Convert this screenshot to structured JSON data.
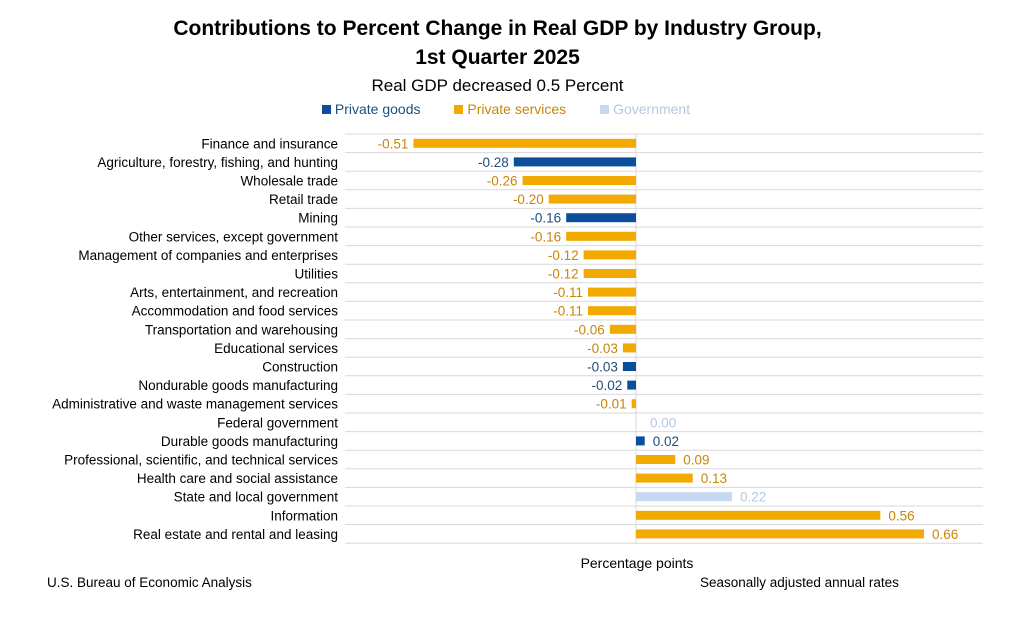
{
  "title_line1": "Contributions to Percent Change in Real GDP by Industry Group,",
  "title_line2": "1st Quarter 2025",
  "subtitle": "Real GDP decreased 0.5 Percent",
  "legend": [
    {
      "label": "Private goods",
      "color": "#0b4f9c"
    },
    {
      "label": "Private services",
      "color": "#f2a900"
    },
    {
      "label": "Government",
      "color": "#c5d9f1"
    }
  ],
  "axis_title": "Percentage points",
  "source": "U.S. Bureau of Economic Analysis",
  "note": "Seasonally adjusted annual rates",
  "colors": {
    "goods": "#0b4f9c",
    "services": "#f2a900",
    "government": "#c5d9f1",
    "grid": "#d9d9d9",
    "label_goods": "#1f4e79",
    "label_services": "#c8850a",
    "label_government": "#b4c8e4"
  },
  "chart_data": {
    "type": "bar",
    "orientation": "horizontal",
    "xlim": [
      -0.74,
      0.74
    ],
    "grid": true,
    "legend_position": "top",
    "categories": [
      "Finance and insurance",
      "Agriculture, forestry, fishing, and hunting",
      "Wholesale trade",
      "Retail trade",
      "Mining",
      "Other services, except government",
      "Management of companies and enterprises",
      "Utilities",
      "Arts, entertainment, and recreation",
      "Accommodation and food services",
      "Transportation and warehousing",
      "Educational services",
      "Construction",
      "Nondurable goods manufacturing",
      "Administrative and waste management services",
      "Federal government",
      "Durable goods manufacturing",
      "Professional, scientific, and technical services",
      "Health care and social assistance",
      "State and local government",
      "Information",
      "Real estate and rental and leasing"
    ],
    "values": [
      -0.51,
      -0.28,
      -0.26,
      -0.2,
      -0.16,
      -0.16,
      -0.12,
      -0.12,
      -0.11,
      -0.11,
      -0.06,
      -0.03,
      -0.03,
      -0.02,
      -0.01,
      0.0,
      0.02,
      0.09,
      0.13,
      0.22,
      0.56,
      0.66
    ],
    "value_labels": [
      "-0.51",
      "-0.28",
      "-0.26",
      "-0.20",
      "-0.16",
      "-0.16",
      "-0.12",
      "-0.12",
      "-0.11",
      "-0.11",
      "-0.06",
      "-0.03",
      "-0.03",
      "-0.02",
      "-0.01",
      "0.00",
      "0.02",
      "0.09",
      "0.13",
      "0.22",
      "0.56",
      "0.66"
    ],
    "groups": [
      "Private services",
      "Private goods",
      "Private services",
      "Private services",
      "Private goods",
      "Private services",
      "Private services",
      "Private services",
      "Private services",
      "Private services",
      "Private services",
      "Private services",
      "Private goods",
      "Private goods",
      "Private services",
      "Government",
      "Private goods",
      "Private services",
      "Private services",
      "Government",
      "Private services",
      "Private services"
    ]
  }
}
